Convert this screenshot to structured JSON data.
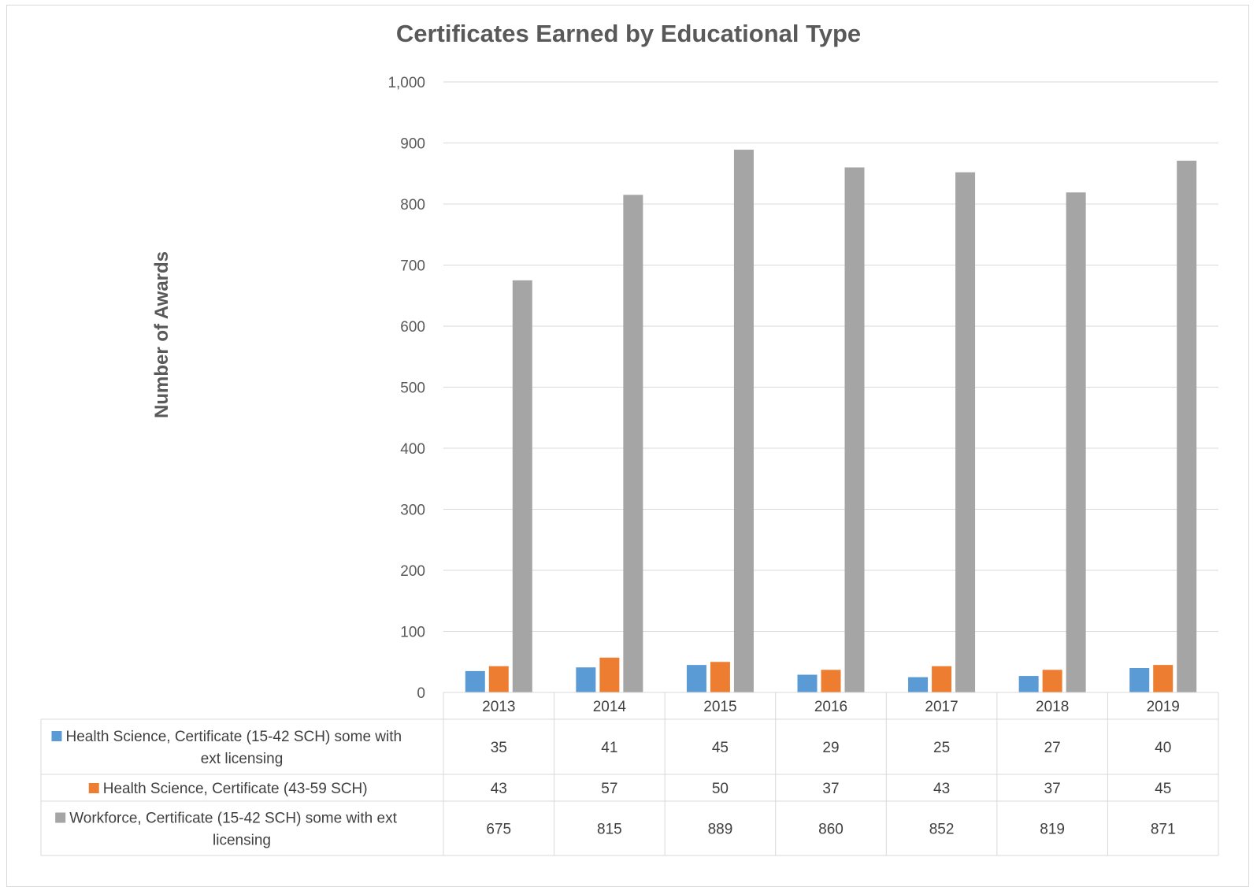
{
  "chart_data": {
    "type": "bar",
    "title": "Certificates Earned by Educational Type",
    "xlabel": "",
    "ylabel": "Number of Awards",
    "ylim": [
      0,
      1000
    ],
    "yticks": [
      0,
      100,
      200,
      300,
      400,
      500,
      600,
      700,
      800,
      900,
      1000
    ],
    "ytick_labels": [
      "0",
      "100",
      "200",
      "300",
      "400",
      "500",
      "600",
      "700",
      "800",
      "900",
      "1,000"
    ],
    "grid": true,
    "legend": "data-table",
    "categories": [
      "2013",
      "2014",
      "2015",
      "2016",
      "2017",
      "2018",
      "2019"
    ],
    "series": [
      {
        "name": "Health Science, Certificate (15-42 SCH) some with ext licensing",
        "name_lines": [
          "Health Science, Certificate (15-42 SCH) some with",
          "ext licensing"
        ],
        "color": "#5b9bd5",
        "values": [
          35,
          41,
          45,
          29,
          25,
          27,
          40
        ]
      },
      {
        "name": "Health Science, Certificate (43-59 SCH)",
        "name_lines": [
          "Health Science, Certificate (43-59 SCH)"
        ],
        "color": "#ed7d31",
        "values": [
          43,
          57,
          50,
          37,
          43,
          37,
          45
        ]
      },
      {
        "name": "Workforce, Certificate (15-42 SCH) some with ext licensing",
        "name_lines": [
          "Workforce, Certificate (15-42 SCH) some with ext",
          "licensing"
        ],
        "color": "#a5a5a5",
        "values": [
          675,
          815,
          889,
          860,
          852,
          819,
          871
        ]
      }
    ]
  }
}
